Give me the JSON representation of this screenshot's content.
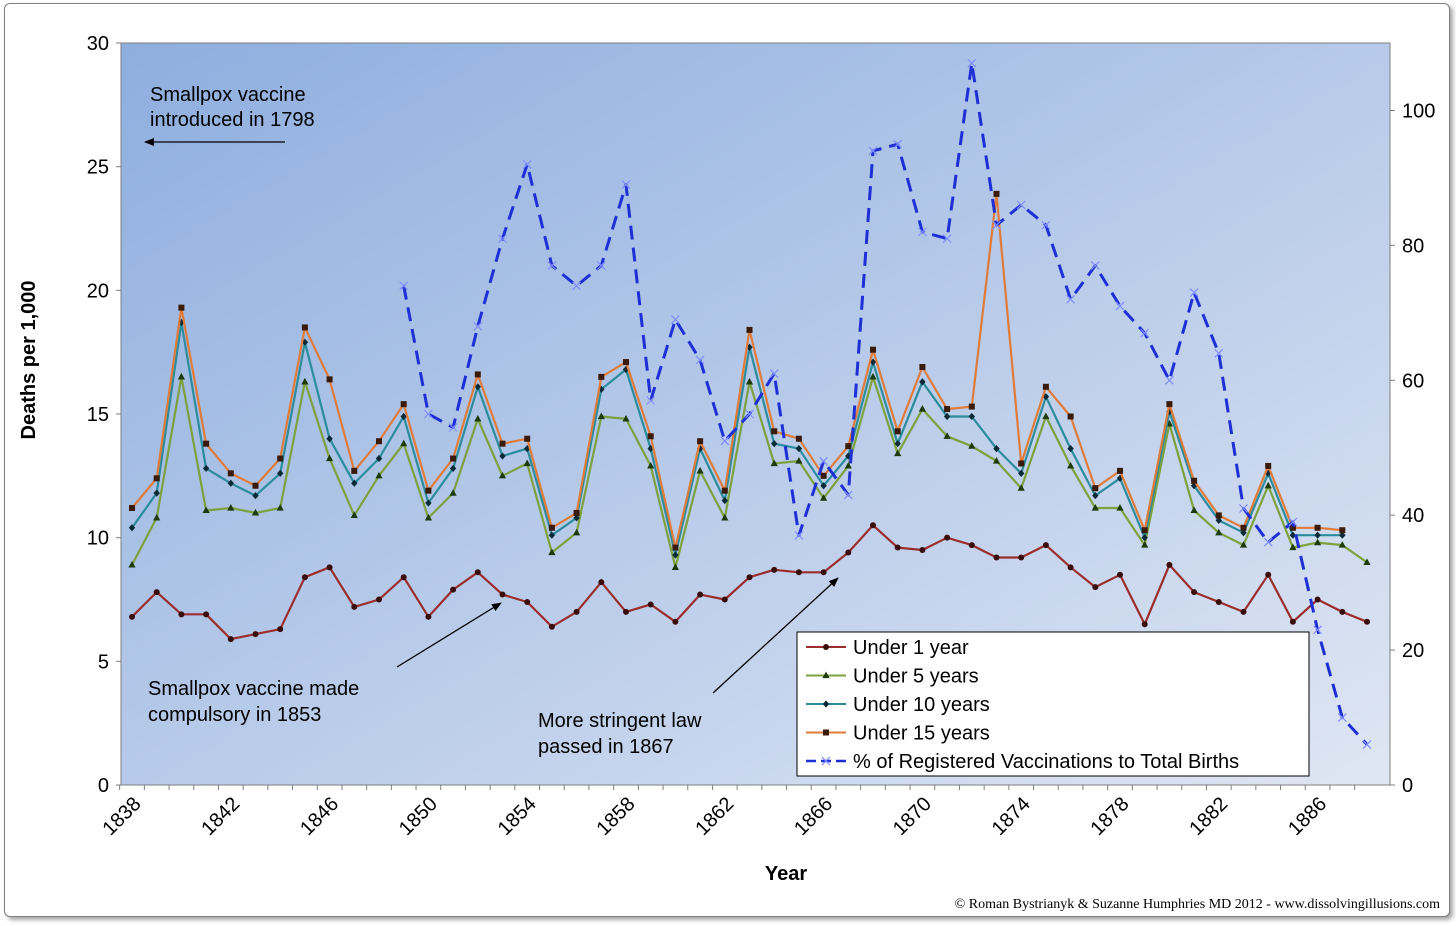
{
  "chart_data": {
    "type": "line",
    "xlabel": "Year",
    "ylabel": "Deaths per 1,000",
    "ylim": [
      0,
      30
    ],
    "y2lim": [
      0,
      110
    ],
    "xlim": [
      1838,
      1888
    ],
    "x_ticks": [
      "1838",
      "1842",
      "1846",
      "1850",
      "1854",
      "1858",
      "1862",
      "1866",
      "1870",
      "1874",
      "1878",
      "1882",
      "1886"
    ],
    "y_ticks": [
      "0",
      "5",
      "10",
      "15",
      "20",
      "25",
      "30"
    ],
    "y2_ticks": [
      "0",
      "20",
      "40",
      "60",
      "80",
      "100"
    ],
    "grid": false,
    "legend_position": "bottom-right",
    "series": [
      {
        "name": "Under 1 year",
        "axis": "left",
        "color": "#9b2d2d",
        "marker": "circle",
        "dash": false,
        "x": [
          1838,
          1839,
          1840,
          1841,
          1842,
          1843,
          1844,
          1845,
          1846,
          1847,
          1848,
          1849,
          1850,
          1851,
          1852,
          1853,
          1854,
          1855,
          1856,
          1857,
          1858,
          1859,
          1860,
          1861,
          1862,
          1863,
          1864,
          1865,
          1866,
          1867,
          1868,
          1869,
          1870,
          1871,
          1872,
          1873,
          1874,
          1875,
          1876,
          1877,
          1878,
          1879,
          1880,
          1881,
          1882,
          1883,
          1884,
          1885,
          1886,
          1887,
          1888
        ],
        "values": [
          6.8,
          7.8,
          6.9,
          6.9,
          5.9,
          6.1,
          6.3,
          8.4,
          8.8,
          7.2,
          7.5,
          8.4,
          6.8,
          7.9,
          8.6,
          7.7,
          7.4,
          6.4,
          7.0,
          8.2,
          7.0,
          7.3,
          6.6,
          7.7,
          7.5,
          8.4,
          8.7,
          8.6,
          8.6,
          9.4,
          10.5,
          9.6,
          9.5,
          10.0,
          9.7,
          9.2,
          9.2,
          9.7,
          8.8,
          8.0,
          8.5,
          6.5,
          8.9,
          7.8,
          7.4,
          7.0,
          8.5,
          6.6,
          7.5,
          7.0,
          6.6
        ]
      },
      {
        "name": "Under 5 years",
        "axis": "left",
        "color": "#7da13c",
        "marker": "triangle",
        "dash": false,
        "x": [
          1838,
          1839,
          1840,
          1841,
          1842,
          1843,
          1844,
          1845,
          1846,
          1847,
          1848,
          1849,
          1850,
          1851,
          1852,
          1853,
          1854,
          1855,
          1856,
          1857,
          1858,
          1859,
          1860,
          1861,
          1862,
          1863,
          1864,
          1865,
          1866,
          1867,
          1868,
          1869,
          1870,
          1871,
          1872,
          1873,
          1874,
          1875,
          1876,
          1877,
          1878,
          1879,
          1880,
          1881,
          1882,
          1883,
          1884,
          1885,
          1886,
          1887,
          1888
        ],
        "values": [
          8.9,
          10.8,
          16.5,
          11.1,
          11.2,
          11.0,
          11.2,
          16.3,
          13.2,
          10.9,
          12.5,
          13.8,
          10.8,
          11.8,
          14.8,
          12.5,
          13.0,
          9.4,
          10.2,
          14.9,
          14.8,
          12.9,
          8.8,
          12.7,
          10.8,
          16.3,
          13.0,
          13.1,
          11.6,
          12.9,
          16.5,
          13.4,
          15.2,
          14.1,
          13.7,
          13.1,
          12.0,
          14.9,
          12.9,
          11.2,
          11.2,
          9.7,
          14.6,
          11.1,
          10.2,
          9.7,
          12.1,
          9.6,
          9.8,
          9.7,
          9.0
        ]
      },
      {
        "name": "Under 10 years",
        "axis": "left",
        "color": "#2a8c9c",
        "marker": "diamond",
        "dash": false,
        "x": [
          1838,
          1839,
          1840,
          1841,
          1842,
          1843,
          1844,
          1845,
          1846,
          1847,
          1848,
          1849,
          1850,
          1851,
          1852,
          1853,
          1854,
          1855,
          1856,
          1857,
          1858,
          1859,
          1860,
          1861,
          1862,
          1863,
          1864,
          1865,
          1866,
          1867,
          1868,
          1869,
          1870,
          1871,
          1872,
          1873,
          1874,
          1875,
          1876,
          1877,
          1878,
          1879,
          1880,
          1881,
          1882,
          1883,
          1884,
          1885,
          1886,
          1887
        ],
        "values": [
          10.4,
          11.8,
          18.7,
          12.8,
          12.2,
          11.7,
          12.6,
          17.9,
          14.0,
          12.2,
          13.2,
          14.9,
          11.4,
          12.8,
          16.1,
          13.3,
          13.6,
          10.1,
          10.8,
          16.0,
          16.8,
          13.6,
          9.3,
          13.6,
          11.5,
          17.7,
          13.8,
          13.6,
          12.1,
          13.3,
          17.1,
          13.8,
          16.3,
          14.9,
          14.9,
          13.6,
          12.6,
          15.7,
          13.6,
          11.7,
          12.4,
          10.0,
          15.1,
          12.1,
          10.7,
          10.2,
          12.6,
          10.1,
          10.1,
          10.1
        ]
      },
      {
        "name": "Under 15 years",
        "axis": "left",
        "color": "#e07b39",
        "marker": "square",
        "dash": false,
        "x": [
          1838,
          1839,
          1840,
          1841,
          1842,
          1843,
          1844,
          1845,
          1846,
          1847,
          1848,
          1849,
          1850,
          1851,
          1852,
          1853,
          1854,
          1855,
          1856,
          1857,
          1858,
          1859,
          1860,
          1861,
          1862,
          1863,
          1864,
          1865,
          1866,
          1867,
          1868,
          1869,
          1870,
          1871,
          1872,
          1873,
          1874,
          1875,
          1876,
          1877,
          1878,
          1879,
          1880,
          1881,
          1882,
          1883,
          1884,
          1885,
          1886,
          1887
        ],
        "values": [
          11.2,
          12.4,
          19.3,
          13.8,
          12.6,
          12.1,
          13.2,
          18.5,
          16.4,
          12.7,
          13.9,
          15.4,
          11.9,
          13.2,
          16.6,
          13.8,
          14.0,
          10.4,
          11.0,
          16.5,
          17.1,
          14.1,
          9.6,
          13.9,
          11.9,
          18.4,
          14.3,
          14.0,
          12.5,
          13.7,
          17.6,
          14.3,
          16.9,
          15.2,
          15.3,
          23.9,
          13.0,
          16.1,
          14.9,
          12.0,
          12.7,
          10.3,
          15.4,
          12.3,
          10.9,
          10.4,
          12.9,
          10.4,
          10.4,
          10.3
        ]
      },
      {
        "name": "% of Registered Vaccinations to Total Births",
        "axis": "right",
        "color": "#1f2fd6",
        "marker": "x",
        "dash": true,
        "x": [
          1849,
          1850,
          1851,
          1852,
          1853,
          1854,
          1855,
          1856,
          1857,
          1858,
          1859,
          1860,
          1861,
          1862,
          1863,
          1864,
          1865,
          1866,
          1867,
          1868,
          1869,
          1870,
          1871,
          1872,
          1873,
          1874,
          1875,
          1876,
          1877,
          1878,
          1879,
          1880,
          1881,
          1882,
          1883,
          1884,
          1885,
          1886,
          1887,
          1888
        ],
        "values": [
          74,
          55,
          53,
          68,
          81,
          92,
          77,
          74,
          77,
          89,
          57,
          69,
          63,
          51,
          55,
          61,
          37,
          48,
          43,
          94,
          95,
          82,
          81,
          107,
          83,
          86,
          83,
          72,
          77,
          71,
          67,
          60,
          73,
          64,
          41,
          36,
          39,
          23,
          10,
          6
        ]
      }
    ]
  },
  "annotations": {
    "intro": [
      "Smallpox vaccine",
      "introduced in 1798"
    ],
    "compulsory": [
      "Smallpox vaccine made",
      "compulsory in 1853"
    ],
    "stringent": [
      "More stringent law",
      "passed in 1867"
    ]
  },
  "credit": "© Roman Bystrianyk & Suzanne Humphries MD 2012 - www.dissolvingillusions.com",
  "colors": {
    "plot_gradient_start": "#8eaedf",
    "plot_gradient_end": "#dfe6f3"
  }
}
